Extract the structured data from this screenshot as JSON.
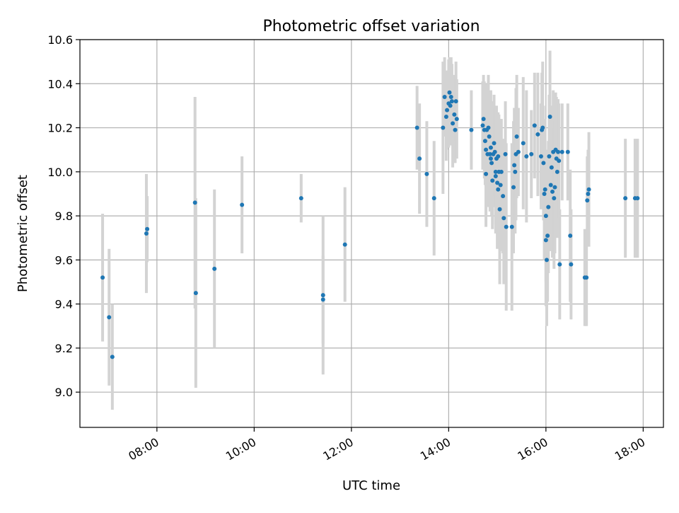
{
  "chart_data": {
    "type": "scatter",
    "title": "Photometric offset variation",
    "xlabel": "UTC time",
    "ylabel": "Photometric offset",
    "x_format": "HH:MM",
    "xlim": [
      "06:25",
      "18:25"
    ],
    "ylim": [
      8.84,
      10.6
    ],
    "x_ticks": [
      "08:00",
      "10:00",
      "12:00",
      "14:00",
      "16:00",
      "18:00"
    ],
    "y_ticks": [
      9.0,
      9.2,
      9.4,
      9.6,
      9.8,
      10.0,
      10.2,
      10.4,
      10.6
    ],
    "grid": true,
    "legend": "none",
    "colors": {
      "point": "#1f77b4",
      "errorbar": "#d3d3d3",
      "grid": "#b0b0b0",
      "axes": "#000000"
    },
    "series": [
      {
        "points": [
          [
            "06:53",
            9.52,
            0.29
          ],
          [
            "07:01",
            9.34,
            0.31
          ],
          [
            "07:05",
            9.16,
            0.24
          ],
          [
            "07:47",
            9.72,
            0.27
          ],
          [
            "07:48",
            9.74,
            0.15
          ],
          [
            "08:47",
            9.86,
            0.48
          ],
          [
            "08:48",
            9.45,
            0.43
          ],
          [
            "09:11",
            9.56,
            0.36
          ],
          [
            "09:45",
            9.85,
            0.22
          ],
          [
            "10:58",
            9.88,
            0.11
          ],
          [
            "11:25",
            9.44,
            0.36
          ],
          [
            "11:25",
            9.42,
            0.2
          ],
          [
            "11:52",
            9.67,
            0.26
          ],
          [
            "13:21",
            10.2,
            0.19
          ],
          [
            "13:24",
            10.06,
            0.25
          ],
          [
            "13:33",
            9.99,
            0.24
          ],
          [
            "13:42",
            9.88,
            0.26
          ],
          [
            "13:53",
            10.2,
            0.3
          ],
          [
            "13:55",
            10.34,
            0.18
          ],
          [
            "13:57",
            10.25,
            0.2
          ],
          [
            "13:58",
            10.28,
            0.18
          ],
          [
            "14:00",
            10.31,
            0.2
          ],
          [
            "14:01",
            10.36,
            0.16
          ],
          [
            "14:02",
            10.3,
            0.18
          ],
          [
            "14:03",
            10.34,
            0.18
          ],
          [
            "14:04",
            10.32,
            0.17
          ],
          [
            "14:05",
            10.22,
            0.2
          ],
          [
            "14:07",
            10.26,
            0.18
          ],
          [
            "14:08",
            10.19,
            0.15
          ],
          [
            "14:09",
            10.32,
            0.18
          ],
          [
            "14:10",
            10.24,
            0.18
          ],
          [
            "14:28",
            10.19,
            0.18
          ],
          [
            "14:42",
            10.21,
            0.2
          ],
          [
            "14:43",
            10.24,
            0.2
          ],
          [
            "14:44",
            10.19,
            0.22
          ],
          [
            "14:45",
            10.14,
            0.2
          ],
          [
            "14:46",
            10.1,
            0.3
          ],
          [
            "14:46",
            9.99,
            0.24
          ],
          [
            "14:47",
            10.19,
            0.2
          ],
          [
            "14:48",
            10.08,
            0.24
          ],
          [
            "14:49",
            10.2,
            0.24
          ],
          [
            "14:50",
            10.16,
            0.2
          ],
          [
            "14:51",
            10.08,
            0.26
          ],
          [
            "14:52",
            10.11,
            0.26
          ],
          [
            "14:52",
            10.06,
            0.22
          ],
          [
            "14:53",
            10.04,
            0.24
          ],
          [
            "14:54",
            9.96,
            0.22
          ],
          [
            "14:55",
            10.08,
            0.24
          ],
          [
            "14:56",
            10.13,
            0.22
          ],
          [
            "14:57",
            10.09,
            0.2
          ],
          [
            "14:58",
            10.0,
            0.24
          ],
          [
            "14:58",
            9.98,
            0.26
          ],
          [
            "14:59",
            10.06,
            0.24
          ],
          [
            "15:00",
            9.95,
            0.3
          ],
          [
            "15:01",
            9.92,
            0.26
          ],
          [
            "15:01",
            10.07,
            0.2
          ],
          [
            "15:02",
            10.0,
            0.26
          ],
          [
            "15:03",
            9.83,
            0.34
          ],
          [
            "15:04",
            9.94,
            0.3
          ],
          [
            "15:05",
            10.0,
            0.24
          ],
          [
            "15:07",
            9.89,
            0.26
          ],
          [
            "15:08",
            9.79,
            0.3
          ],
          [
            "15:10",
            10.08,
            0.24
          ],
          [
            "15:11",
            9.75,
            0.38
          ],
          [
            "15:18",
            9.75,
            0.38
          ],
          [
            "15:20",
            9.93,
            0.3
          ],
          [
            "15:21",
            10.03,
            0.26
          ],
          [
            "15:22",
            10.0,
            0.28
          ],
          [
            "15:23",
            10.08,
            0.3
          ],
          [
            "15:24",
            10.16,
            0.28
          ],
          [
            "15:26",
            10.09,
            0.2
          ],
          [
            "15:32",
            10.13,
            0.3
          ],
          [
            "15:36",
            10.07,
            0.3
          ],
          [
            "15:42",
            10.08,
            0.2
          ],
          [
            "15:46",
            10.21,
            0.24
          ],
          [
            "15:50",
            10.17,
            0.28
          ],
          [
            "15:54",
            10.07,
            0.24
          ],
          [
            "15:55",
            10.19,
            0.26
          ],
          [
            "15:56",
            10.2,
            0.3
          ],
          [
            "15:57",
            10.04,
            0.26
          ],
          [
            "15:58",
            9.9,
            0.3
          ],
          [
            "15:59",
            9.92,
            0.32
          ],
          [
            "16:00",
            9.69,
            0.3
          ],
          [
            "16:00",
            9.8,
            0.3
          ],
          [
            "16:01",
            9.6,
            0.3
          ],
          [
            "16:02",
            9.71,
            0.3
          ],
          [
            "16:03",
            9.84,
            0.3
          ],
          [
            "16:04",
            10.07,
            0.28
          ],
          [
            "16:05",
            10.25,
            0.3
          ],
          [
            "16:06",
            9.94,
            0.3
          ],
          [
            "16:07",
            10.02,
            0.28
          ],
          [
            "16:08",
            9.91,
            0.3
          ],
          [
            "16:09",
            10.09,
            0.28
          ],
          [
            "16:10",
            9.88,
            0.32
          ],
          [
            "16:11",
            9.93,
            0.3
          ],
          [
            "16:12",
            10.1,
            0.26
          ],
          [
            "16:13",
            10.06,
            0.28
          ],
          [
            "16:14",
            10.0,
            0.3
          ],
          [
            "16:15",
            10.09,
            0.24
          ],
          [
            "16:16",
            10.05,
            0.26
          ],
          [
            "16:17",
            9.58,
            0.25
          ],
          [
            "16:20",
            10.09,
            0.22
          ],
          [
            "16:27",
            10.09,
            0.22
          ],
          [
            "16:30",
            9.71,
            0.3
          ],
          [
            "16:31",
            9.58,
            0.25
          ],
          [
            "16:48",
            9.52,
            0.22
          ],
          [
            "16:50",
            9.52,
            0.22
          ],
          [
            "16:51",
            9.87,
            0.2
          ],
          [
            "16:52",
            9.9,
            0.2
          ],
          [
            "16:53",
            9.92,
            0.26
          ],
          [
            "17:38",
            9.88,
            0.27
          ],
          [
            "17:50",
            9.88,
            0.27
          ],
          [
            "17:53",
            9.88,
            0.27
          ]
        ]
      }
    ]
  }
}
